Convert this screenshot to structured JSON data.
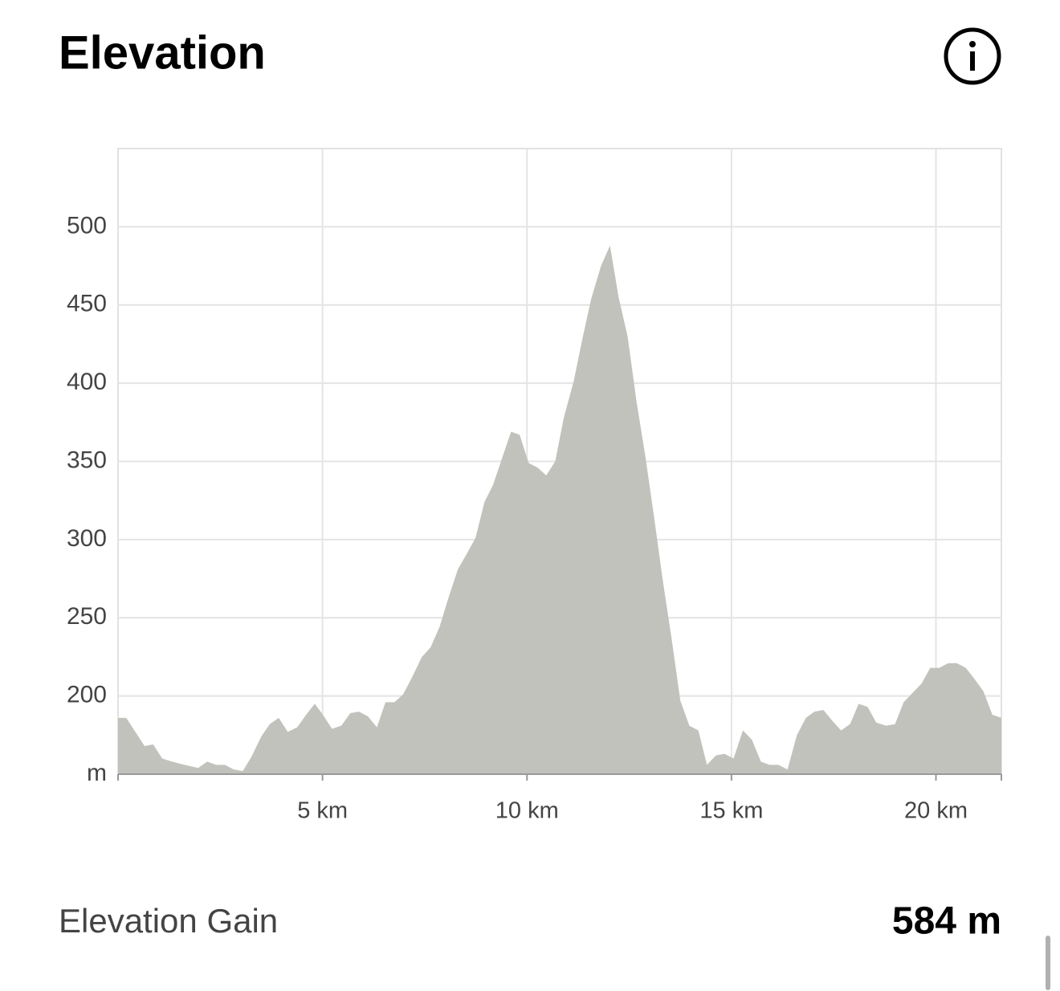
{
  "header": {
    "title": "Elevation"
  },
  "chart_data": {
    "type": "area",
    "color": "#c2c2bd",
    "grid": true,
    "xlim": [
      0,
      21.6
    ],
    "ylim": [
      150,
      550
    ],
    "xticks": [
      {
        "value": 5,
        "label": "5 km"
      },
      {
        "value": 10,
        "label": "10 km"
      },
      {
        "value": 15,
        "label": "15 km"
      },
      {
        "value": 20,
        "label": "20 km"
      }
    ],
    "yticks": [
      {
        "value": 150,
        "label": "m"
      },
      200,
      250,
      300,
      350,
      400,
      450,
      500
    ],
    "x": [
      0,
      0.2,
      0.65,
      0.86,
      1.08,
      1.32,
      1.63,
      1.96,
      2.18,
      2.4,
      2.61,
      2.83,
      3.05,
      3.26,
      3.5,
      3.71,
      3.93,
      4.15,
      4.38,
      4.6,
      4.81,
      5.01,
      5.23,
      5.46,
      5.68,
      5.89,
      6.11,
      6.33,
      6.54,
      6.76,
      6.97,
      7.19,
      7.43,
      7.64,
      7.86,
      8.07,
      8.31,
      8.53,
      8.74,
      8.96,
      9.17,
      9.39,
      9.61,
      9.82,
      10.04,
      10.26,
      10.47,
      10.69,
      10.9,
      11.14,
      11.36,
      11.57,
      11.81,
      12.03,
      12.24,
      12.46,
      12.68,
      12.89,
      13.11,
      13.32,
      13.54,
      13.75,
      13.97,
      14.19,
      14.4,
      14.62,
      14.83,
      15.05,
      15.28,
      15.5,
      15.72,
      15.93,
      16.15,
      16.37,
      16.6,
      16.82,
      17.03,
      17.25,
      17.47,
      17.68,
      17.9,
      18.11,
      18.33,
      18.54,
      18.78,
      19.0,
      19.21,
      19.43,
      19.65,
      19.86,
      20.08,
      20.3,
      20.51,
      20.73,
      20.94,
      21.16,
      21.38,
      21.6
    ],
    "values": [
      186,
      186,
      168,
      169,
      160,
      158,
      156,
      154,
      158,
      156,
      156,
      153,
      152,
      161,
      174,
      182,
      186,
      177,
      180,
      188,
      195,
      188,
      179,
      181,
      189,
      190,
      187,
      180,
      196,
      196,
      201,
      212,
      225,
      231,
      244,
      262,
      281,
      291,
      301,
      324,
      335,
      352,
      369,
      367,
      349,
      346,
      341,
      350,
      378,
      401,
      429,
      454,
      475,
      488,
      455,
      430,
      388,
      354,
      314,
      274,
      236,
      197,
      181,
      178,
      156,
      162,
      163,
      160,
      178,
      172,
      158,
      156,
      156,
      153,
      175,
      186,
      190,
      191,
      184,
      178,
      182,
      195,
      193,
      183,
      181,
      182,
      196,
      202,
      208,
      218,
      218,
      221,
      221,
      218,
      211,
      203,
      188,
      186
    ]
  },
  "summary": {
    "label": "Elevation Gain",
    "value": "584 m"
  }
}
